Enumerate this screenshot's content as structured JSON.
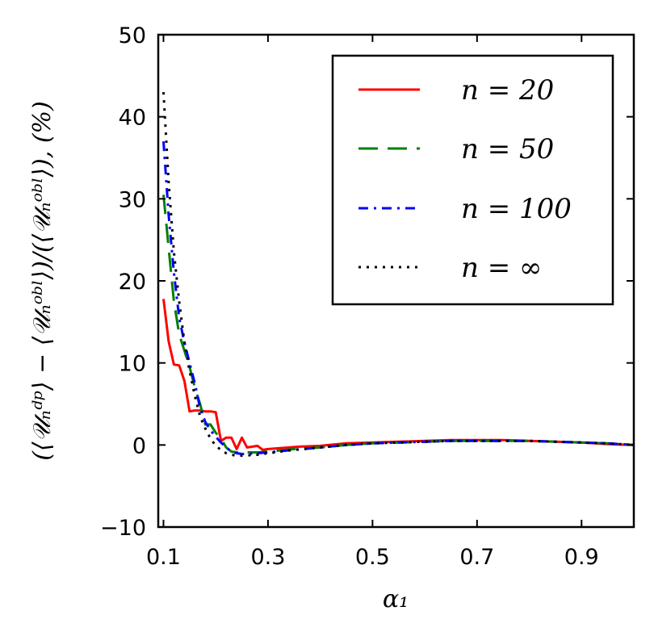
{
  "chart_data": {
    "type": "line",
    "title": "",
    "xlabel": "α₁",
    "ylabel": "(⟨𝒰ₙᵈᵖ⟩ − ⟨𝒰ₙᵒᵇˡ⟩)/(⟨𝒰ₙᵒᵇˡ⟩), (%)",
    "xlim": [
      0.09,
      1.0
    ],
    "ylim": [
      -10,
      50
    ],
    "xticks": [
      0.1,
      0.3,
      0.5,
      0.7,
      0.9
    ],
    "xtick_labels": [
      "0.1",
      "0.3",
      "0.5",
      "0.7",
      "0.9"
    ],
    "yticks": [
      -10,
      0,
      10,
      20,
      30,
      40,
      50
    ],
    "ytick_labels": [
      "−10",
      "0",
      "10",
      "20",
      "30",
      "40",
      "50"
    ],
    "legend_position": "top-right",
    "series": [
      {
        "name": "n = 20",
        "color": "#ff0000",
        "dash": "solid",
        "x": [
          0.1,
          0.11,
          0.12,
          0.13,
          0.14,
          0.15,
          0.16,
          0.17,
          0.18,
          0.19,
          0.2,
          0.21,
          0.22,
          0.23,
          0.24,
          0.25,
          0.26,
          0.27,
          0.28,
          0.29,
          0.3,
          0.32,
          0.34,
          0.36,
          0.4,
          0.45,
          0.5,
          0.55,
          0.6,
          0.65,
          0.7,
          0.75,
          0.8,
          0.85,
          0.9,
          0.95,
          1.0
        ],
        "values": [
          17.8,
          12.6,
          9.8,
          9.7,
          7.8,
          4.1,
          4.2,
          4.2,
          4.1,
          4.1,
          4.0,
          0.5,
          0.9,
          0.9,
          -0.5,
          0.9,
          -0.3,
          -0.2,
          -0.1,
          -0.6,
          -0.5,
          -0.4,
          -0.3,
          -0.2,
          -0.1,
          0.2,
          0.3,
          0.4,
          0.5,
          0.6,
          0.6,
          0.6,
          0.5,
          0.4,
          0.3,
          0.1,
          0.0
        ]
      },
      {
        "name": "n = 50",
        "color": "#008000",
        "dash": "dashed",
        "x": [
          0.1,
          0.11,
          0.12,
          0.13,
          0.14,
          0.15,
          0.16,
          0.17,
          0.18,
          0.19,
          0.2,
          0.21,
          0.22,
          0.23,
          0.24,
          0.25,
          0.26,
          0.28,
          0.3,
          0.35,
          0.4,
          0.45,
          0.5,
          0.55,
          0.6,
          0.65,
          0.7,
          0.75,
          0.8,
          0.85,
          0.9,
          0.95,
          1.0
        ],
        "values": [
          30.5,
          24.0,
          17.5,
          13.5,
          11.5,
          9.5,
          7.0,
          5.0,
          2.5,
          2.5,
          1.5,
          0.8,
          -0.3,
          -0.8,
          -0.9,
          -1.0,
          -0.9,
          -0.9,
          -0.8,
          -0.5,
          -0.3,
          0.0,
          0.2,
          0.3,
          0.4,
          0.5,
          0.5,
          0.5,
          0.5,
          0.4,
          0.3,
          0.2,
          0.0
        ]
      },
      {
        "name": "n = 100",
        "color": "#0000ff",
        "dash": "dashdot",
        "x": [
          0.1,
          0.11,
          0.12,
          0.13,
          0.14,
          0.15,
          0.16,
          0.17,
          0.18,
          0.19,
          0.2,
          0.21,
          0.22,
          0.23,
          0.24,
          0.25,
          0.26,
          0.28,
          0.3,
          0.35,
          0.4,
          0.45,
          0.5,
          0.55,
          0.6,
          0.65,
          0.7,
          0.75,
          0.8,
          0.85,
          0.9,
          0.95,
          1.0
        ],
        "values": [
          37.0,
          28.0,
          21.0,
          15.5,
          12.5,
          10.0,
          7.5,
          4.5,
          2.8,
          1.8,
          1.0,
          0.3,
          -0.3,
          -0.8,
          -1.0,
          -1.1,
          -1.1,
          -1.0,
          -0.9,
          -0.6,
          -0.3,
          0.0,
          0.2,
          0.3,
          0.4,
          0.5,
          0.5,
          0.5,
          0.5,
          0.4,
          0.3,
          0.2,
          0.0
        ]
      },
      {
        "name": "n = ∞",
        "color": "#000000",
        "dash": "dotted",
        "x": [
          0.1,
          0.11,
          0.12,
          0.13,
          0.14,
          0.15,
          0.16,
          0.17,
          0.18,
          0.19,
          0.2,
          0.21,
          0.22,
          0.23,
          0.24,
          0.25,
          0.26,
          0.27,
          0.28,
          0.3,
          0.35,
          0.4,
          0.45,
          0.5,
          0.55,
          0.6,
          0.65,
          0.7,
          0.75,
          0.8,
          0.85,
          0.9,
          0.95,
          1.0
        ],
        "values": [
          43.0,
          32.0,
          23.5,
          17.5,
          12.5,
          9.0,
          6.0,
          3.5,
          2.0,
          0.8,
          -0.1,
          -0.6,
          -1.0,
          -1.2,
          -1.3,
          -1.3,
          -1.3,
          -1.2,
          -1.2,
          -1.0,
          -0.6,
          -0.3,
          0.0,
          0.2,
          0.3,
          0.4,
          0.5,
          0.5,
          0.5,
          0.5,
          0.4,
          0.3,
          0.2,
          0.0
        ]
      }
    ]
  }
}
